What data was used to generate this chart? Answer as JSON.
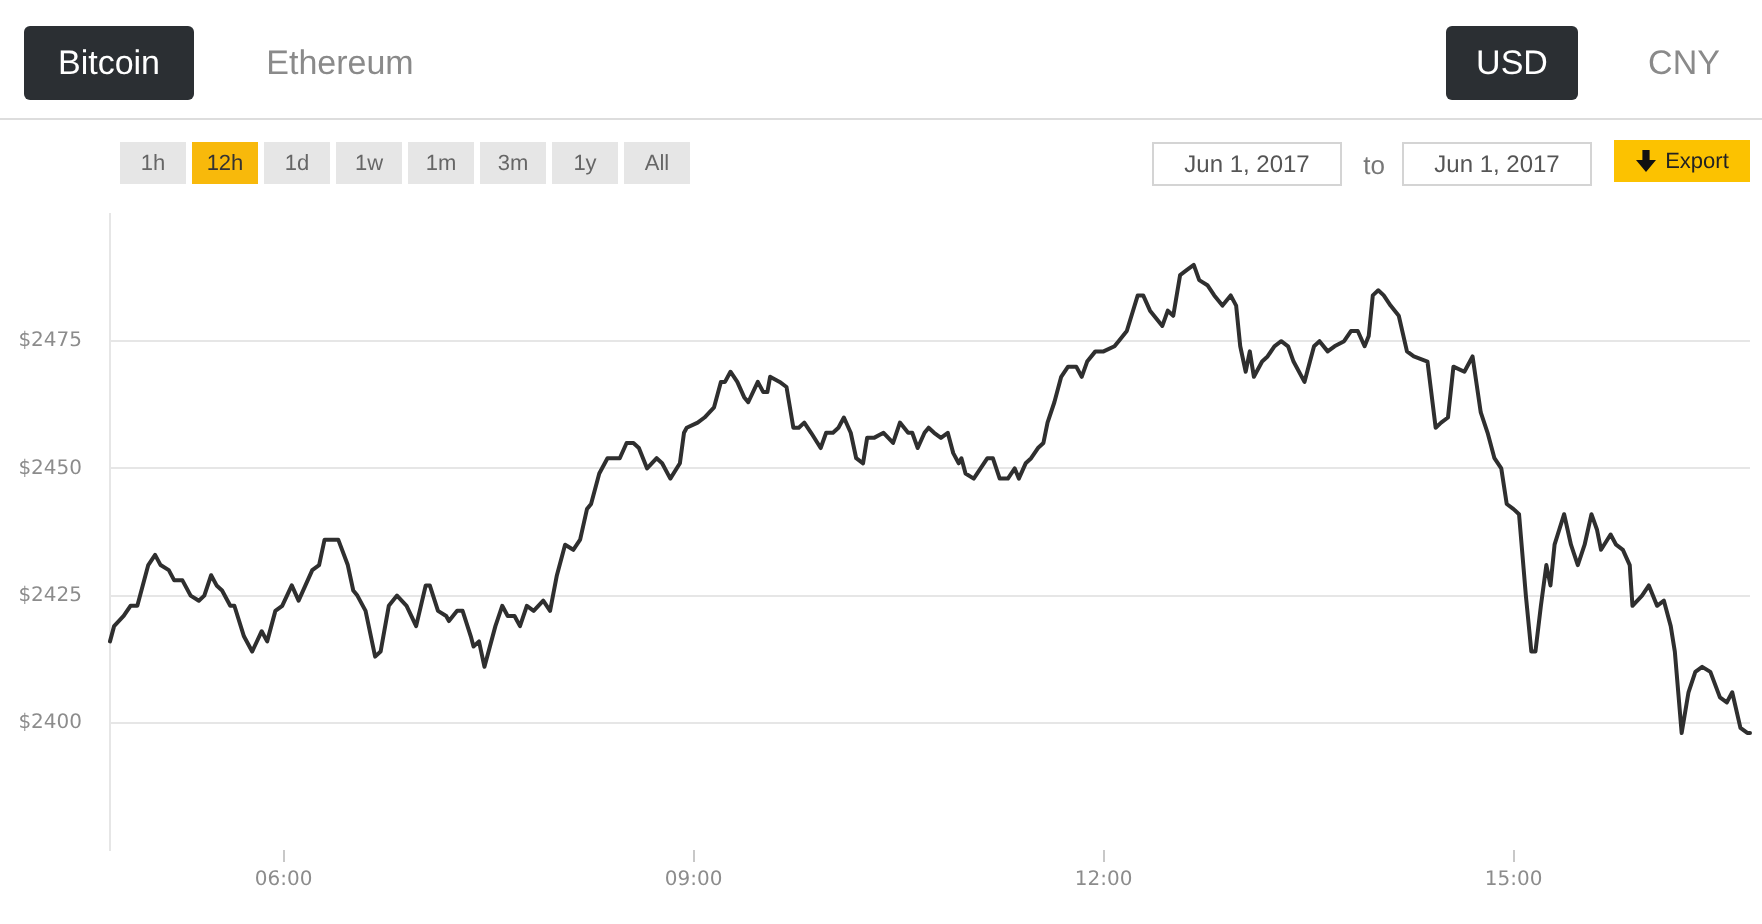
{
  "chart_data": {
    "type": "line",
    "annotations": [
      "Bitcoin",
      "Ethereum",
      "USD",
      "CNY",
      "1h",
      "12h",
      "1d",
      "1w",
      "1m",
      "3m",
      "1y",
      "All",
      "Jun 1, 2017",
      "to",
      "Jun 1, 2017",
      "Export"
    ],
    "x": [
      4.73,
      4.76,
      4.83,
      4.88,
      4.93,
      4.98,
      5.01,
      5.06,
      5.1,
      5.16,
      5.2,
      5.26,
      5.32,
      5.38,
      5.42,
      5.47,
      5.51,
      5.55,
      5.61,
      5.64,
      5.71,
      5.77,
      5.84,
      5.88,
      5.94,
      5.99,
      6.06,
      6.11,
      6.16,
      6.21,
      6.26,
      6.3,
      6.35,
      6.4,
      6.47,
      6.51,
      6.54,
      6.6,
      6.67,
      6.71,
      6.77,
      6.83,
      6.9,
      6.97,
      7.04,
      7.07,
      7.13,
      7.19,
      7.21,
      7.27,
      7.31,
      7.37,
      7.39,
      7.43,
      7.47,
      7.55,
      7.6,
      7.64,
      7.69,
      7.73,
      7.78,
      7.83,
      7.9,
      7.95,
      8.0,
      8.06,
      8.12,
      8.17,
      8.22,
      8.25,
      8.31,
      8.37,
      8.41,
      8.46,
      8.51,
      8.56,
      8.6,
      8.66,
      8.73,
      8.77,
      8.83,
      8.9,
      8.93,
      8.95,
      9.03,
      9.08,
      9.15,
      9.2,
      9.23,
      9.27,
      9.32,
      9.37,
      9.4,
      9.47,
      9.51,
      9.54,
      9.56,
      9.63,
      9.68,
      9.73,
      9.77,
      9.81,
      9.86,
      9.93,
      9.97,
      10.02,
      10.06,
      10.1,
      10.15,
      10.19,
      10.24,
      10.27,
      10.32,
      10.39,
      10.46,
      10.51,
      10.57,
      10.6,
      10.64,
      10.69,
      10.72,
      10.76,
      10.81,
      10.86,
      10.9,
      10.94,
      10.96,
      10.99,
      11.05,
      11.1,
      11.15,
      11.19,
      11.24,
      11.3,
      11.35,
      11.38,
      11.43,
      11.47,
      11.52,
      11.56,
      11.59,
      11.64,
      11.69,
      11.74,
      11.8,
      11.84,
      11.88,
      11.94,
      12.0,
      12.08,
      12.11,
      12.17,
      12.25,
      12.29,
      12.34,
      12.43,
      12.47,
      12.51,
      12.56,
      12.61,
      12.66,
      12.7,
      12.76,
      12.81,
      12.87,
      12.93,
      12.97,
      13.0,
      13.04,
      13.07,
      13.1,
      13.16,
      13.2,
      13.25,
      13.3,
      13.35,
      13.39,
      13.47,
      13.51,
      13.54,
      13.58,
      13.64,
      13.69,
      13.76,
      13.81,
      13.86,
      13.91,
      13.94,
      13.97,
      14.01,
      14.05,
      14.1,
      14.16,
      14.22,
      14.27,
      14.37,
      14.43,
      14.47,
      14.52,
      14.56,
      14.64,
      14.7,
      14.76,
      14.81,
      14.86,
      14.91,
      14.95,
      15.0,
      15.04,
      15.09,
      15.13,
      15.16,
      15.2,
      15.24,
      15.27,
      15.3,
      15.37,
      15.42,
      15.47,
      15.52,
      15.57,
      15.61,
      15.64,
      15.71,
      15.75,
      15.8,
      15.85,
      15.87,
      15.94,
      15.99,
      16.05,
      16.1,
      16.15,
      16.18,
      16.23,
      16.28,
      16.33,
      16.38,
      16.44,
      16.51,
      16.56,
      16.6,
      16.66,
      16.71,
      16.73
    ],
    "series": [
      {
        "color": "#2f2f2f",
        "values": [
          2416,
          2419,
          2421,
          2423,
          2423,
          2428,
          2431,
          2433,
          2431,
          2430,
          2428,
          2428,
          2425,
          2424,
          2425,
          2429,
          2427,
          2426,
          2423,
          2423,
          2417,
          2414,
          2418,
          2416,
          2422,
          2423,
          2427,
          2424,
          2427,
          2430,
          2431,
          2436,
          2436,
          2436,
          2431,
          2426,
          2425,
          2422,
          2413,
          2414,
          2423,
          2425,
          2423,
          2419,
          2427,
          2427,
          2422,
          2421,
          2420,
          2422,
          2422,
          2417,
          2415,
          2416,
          2411,
          2419,
          2423,
          2421,
          2421,
          2419,
          2423,
          2422,
          2424,
          2422,
          2429,
          2435,
          2434,
          2436,
          2442,
          2443,
          2449,
          2452,
          2452,
          2452,
          2455,
          2455,
          2454,
          2450,
          2452,
          2451,
          2448,
          2451,
          2457,
          2458,
          2459,
          2460,
          2462,
          2467,
          2467,
          2469,
          2467,
          2464,
          2463,
          2467,
          2465,
          2465,
          2468,
          2467,
          2466,
          2458,
          2458,
          2459,
          2457,
          2454,
          2457,
          2457,
          2458,
          2460,
          2457,
          2452,
          2451,
          2456,
          2456,
          2457,
          2455,
          2459,
          2457,
          2457,
          2454,
          2457,
          2458,
          2457,
          2456,
          2457,
          2453,
          2451,
          2452,
          2449,
          2448,
          2450,
          2452,
          2452,
          2448,
          2448,
          2450,
          2448,
          2451,
          2452,
          2454,
          2455,
          2459,
          2463,
          2468,
          2470,
          2470,
          2468,
          2471,
          2473,
          2473,
          2474,
          2475,
          2477,
          2484,
          2484,
          2481,
          2478,
          2481,
          2480,
          2488,
          2489,
          2490,
          2487,
          2486,
          2484,
          2482,
          2484,
          2482,
          2474,
          2469,
          2473,
          2468,
          2471,
          2472,
          2474,
          2475,
          2474,
          2471,
          2467,
          2471,
          2474,
          2475,
          2473,
          2474,
          2475,
          2477,
          2477,
          2474,
          2476,
          2484,
          2485,
          2484,
          2482,
          2480,
          2473,
          2472,
          2471,
          2458,
          2459,
          2460,
          2470,
          2469,
          2472,
          2461,
          2457,
          2452,
          2450,
          2443,
          2442,
          2441,
          2425,
          2414,
          2414,
          2423,
          2431,
          2427,
          2435,
          2441,
          2435,
          2431,
          2435,
          2441,
          2438,
          2434,
          2437,
          2435,
          2434,
          2431,
          2423,
          2425,
          2427,
          2423,
          2424,
          2419,
          2414,
          2398,
          2406,
          2410,
          2411,
          2410,
          2405,
          2404,
          2406,
          2399,
          2398,
          2398
        ]
      }
    ],
    "xlim": [
      4.73,
      16.73
    ],
    "xticks": [
      {
        "value": 6,
        "label": "06:00"
      },
      {
        "value": 9,
        "label": "09:00"
      },
      {
        "value": 12,
        "label": "12:00"
      },
      {
        "value": 15,
        "label": "15:00"
      }
    ],
    "ylim": [
      2375,
      2500
    ],
    "yticks": [
      {
        "value": 2400,
        "label": "$2400"
      },
      {
        "value": 2425,
        "label": "$2425"
      },
      {
        "value": 2450,
        "label": "$2450"
      },
      {
        "value": 2475,
        "label": "$2475"
      }
    ],
    "grid": "y"
  }
}
